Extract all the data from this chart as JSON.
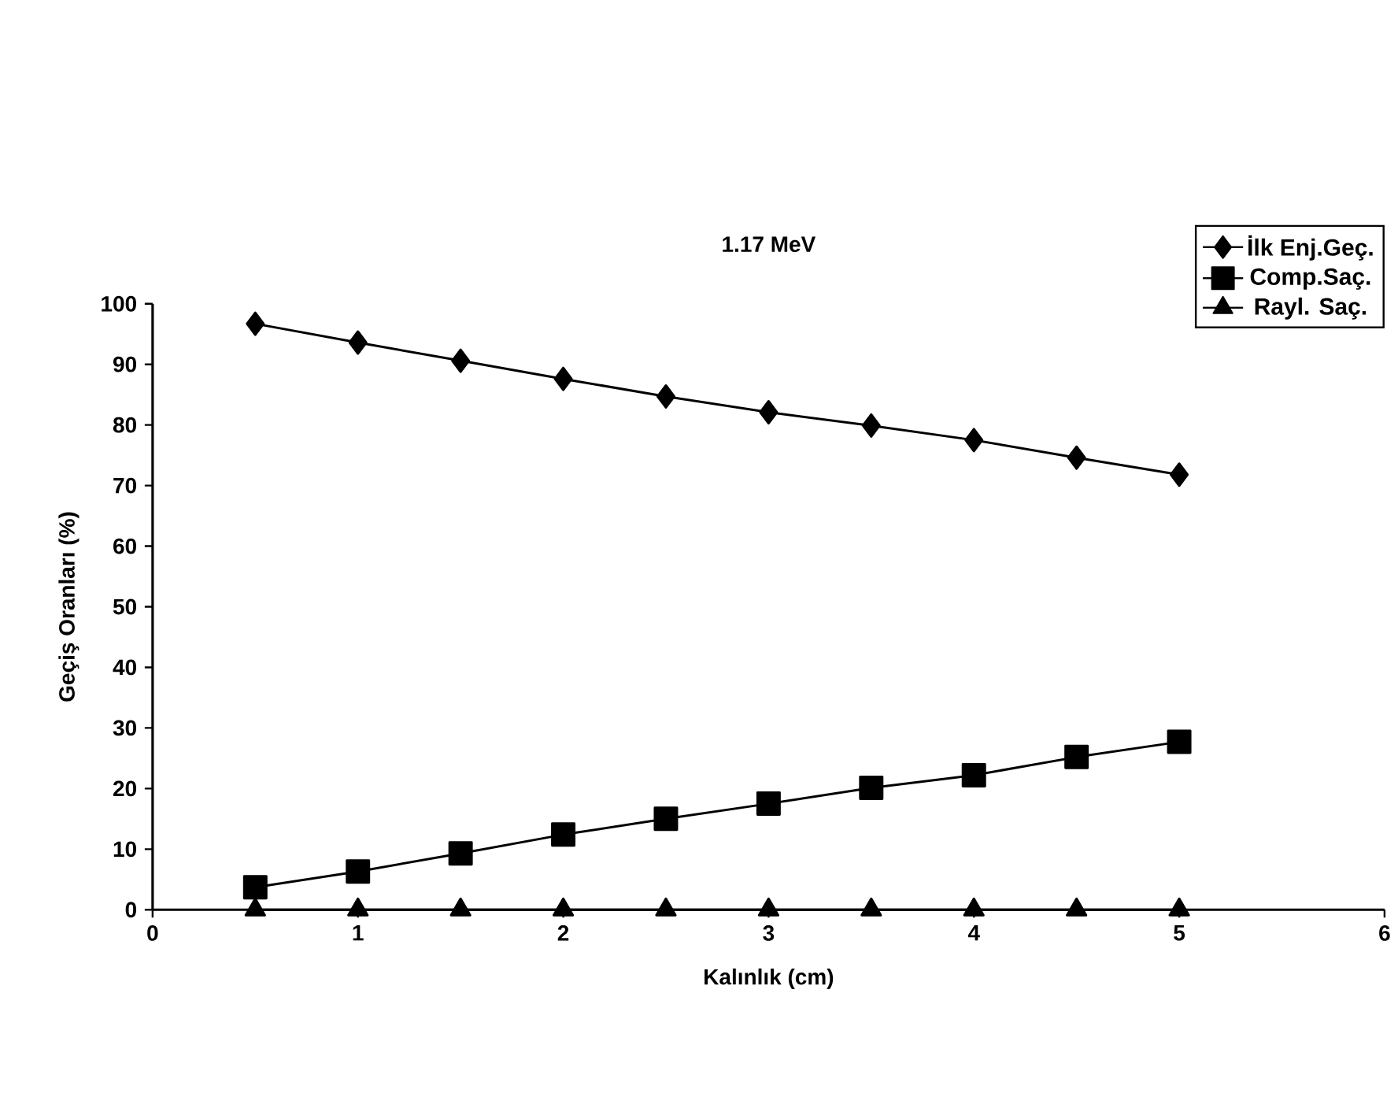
{
  "chart_data": {
    "type": "line",
    "title": "1.17 MeV",
    "xlabel": "Kalınlık (cm)",
    "ylabel": "Geçiş Oranları (%)",
    "x": [
      0.5,
      1,
      1.5,
      2,
      2.5,
      3,
      3.5,
      4,
      4.5,
      5
    ],
    "series": [
      {
        "name": "İlk Enj.Geç.",
        "color": "#000000",
        "marker": "diamond",
        "values": [
          96.7,
          93.6,
          90.6,
          87.6,
          84.7,
          82.1,
          79.9,
          77.5,
          74.6,
          71.8
        ]
      },
      {
        "name": "Comp.Saç.",
        "color": "#000000",
        "marker": "square",
        "values": [
          3.7,
          6.3,
          9.3,
          12.4,
          15.0,
          17.5,
          20.1,
          22.2,
          25.2,
          27.7
        ]
      },
      {
        "name": "Rayl. Saç.",
        "color": "#000000",
        "marker": "triangle",
        "values": [
          0,
          0,
          0,
          0,
          0,
          0,
          0,
          0,
          0,
          0
        ]
      }
    ],
    "xlim": [
      0,
      6
    ],
    "xticks": [
      0,
      1,
      2,
      3,
      4,
      5,
      6
    ],
    "ylim": [
      0,
      100
    ],
    "yticks": [
      0,
      10,
      20,
      30,
      40,
      50,
      60,
      70,
      80,
      90,
      100
    ],
    "grid": false,
    "legend": "top right",
    "line_style": "solid"
  }
}
